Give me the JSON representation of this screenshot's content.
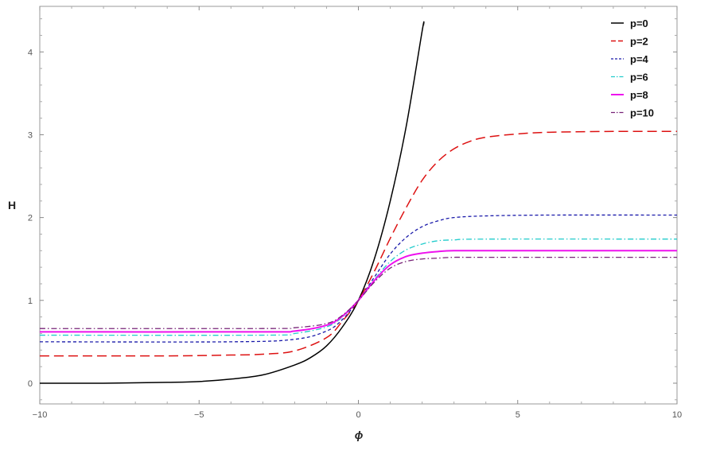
{
  "chart_data": {
    "type": "line",
    "xlabel": "ϕ",
    "ylabel": "H",
    "xlim": [
      -10,
      10
    ],
    "ylim": [
      -0.25,
      4.55
    ],
    "x_ticks": [
      -10,
      -5,
      0,
      5,
      10
    ],
    "x_tick_labels": [
      "−10",
      "−5",
      "0",
      "5",
      "10"
    ],
    "y_ticks": [
      0,
      1,
      2,
      3,
      4
    ],
    "y_tick_labels": [
      "0",
      "1",
      "2",
      "3",
      "4"
    ],
    "grid": false,
    "legend_position": "top-right",
    "series": [
      {
        "name": "p=0",
        "color": "#000000",
        "dash": "solid",
        "width": 1.5,
        "x": [
          -10,
          -8,
          -6,
          -5,
          -4,
          -3,
          -2,
          -1.5,
          -1,
          -0.5,
          0,
          0.5,
          1,
          1.5,
          2,
          2.05
        ],
        "y": [
          0.0,
          0.0,
          0.01,
          0.02,
          0.05,
          0.1,
          0.22,
          0.31,
          0.45,
          0.68,
          1.0,
          1.5,
          2.2,
          3.1,
          4.25,
          4.33
        ]
      },
      {
        "name": "p=2",
        "color": "#dd1111",
        "dash": "long-dash",
        "width": 1.5,
        "x": [
          -10,
          -6,
          -4,
          -3,
          -2,
          -1,
          -0.5,
          0,
          0.5,
          1,
          1.5,
          2,
          2.5,
          3,
          3.5,
          4,
          5,
          6,
          8,
          10
        ],
        "y": [
          0.33,
          0.33,
          0.34,
          0.35,
          0.39,
          0.55,
          0.75,
          1.0,
          1.35,
          1.75,
          2.12,
          2.45,
          2.68,
          2.83,
          2.92,
          2.97,
          3.01,
          3.03,
          3.04,
          3.04
        ]
      },
      {
        "name": "p=4",
        "color": "#1a1aaa",
        "dash": "short-dash",
        "width": 1.3,
        "x": [
          -10,
          -4,
          -2,
          -1,
          -0.5,
          0,
          0.5,
          1,
          1.5,
          2,
          2.5,
          3,
          4,
          6,
          10
        ],
        "y": [
          0.5,
          0.5,
          0.53,
          0.63,
          0.77,
          1.0,
          1.28,
          1.56,
          1.76,
          1.89,
          1.96,
          2.0,
          2.02,
          2.03,
          2.03
        ]
      },
      {
        "name": "p=6",
        "color": "#22cccc",
        "dash": "dash-dot",
        "width": 1.3,
        "x": [
          -10,
          -3,
          -2,
          -1,
          -0.5,
          0,
          0.5,
          1,
          1.5,
          2,
          2.5,
          3,
          4,
          10
        ],
        "y": [
          0.58,
          0.58,
          0.6,
          0.68,
          0.8,
          1.0,
          1.25,
          1.47,
          1.61,
          1.68,
          1.72,
          1.73,
          1.74,
          1.74
        ]
      },
      {
        "name": "p=8",
        "color": "#ee11ee",
        "dash": "solid",
        "width": 2,
        "x": [
          -10,
          -3,
          -2,
          -1,
          -0.5,
          0,
          0.5,
          1,
          1.5,
          2,
          2.5,
          3,
          4,
          10
        ],
        "y": [
          0.62,
          0.62,
          0.63,
          0.7,
          0.81,
          1.0,
          1.24,
          1.43,
          1.53,
          1.57,
          1.59,
          1.6,
          1.6,
          1.6
        ]
      },
      {
        "name": "p=10",
        "color": "#772277",
        "dash": "dash-dot",
        "width": 1.3,
        "x": [
          -10,
          -3,
          -2,
          -1,
          -0.5,
          0,
          0.5,
          1,
          1.5,
          2,
          2.5,
          3,
          4,
          10
        ],
        "y": [
          0.66,
          0.66,
          0.67,
          0.72,
          0.82,
          1.0,
          1.22,
          1.39,
          1.47,
          1.5,
          1.51,
          1.52,
          1.52,
          1.52
        ]
      }
    ]
  }
}
